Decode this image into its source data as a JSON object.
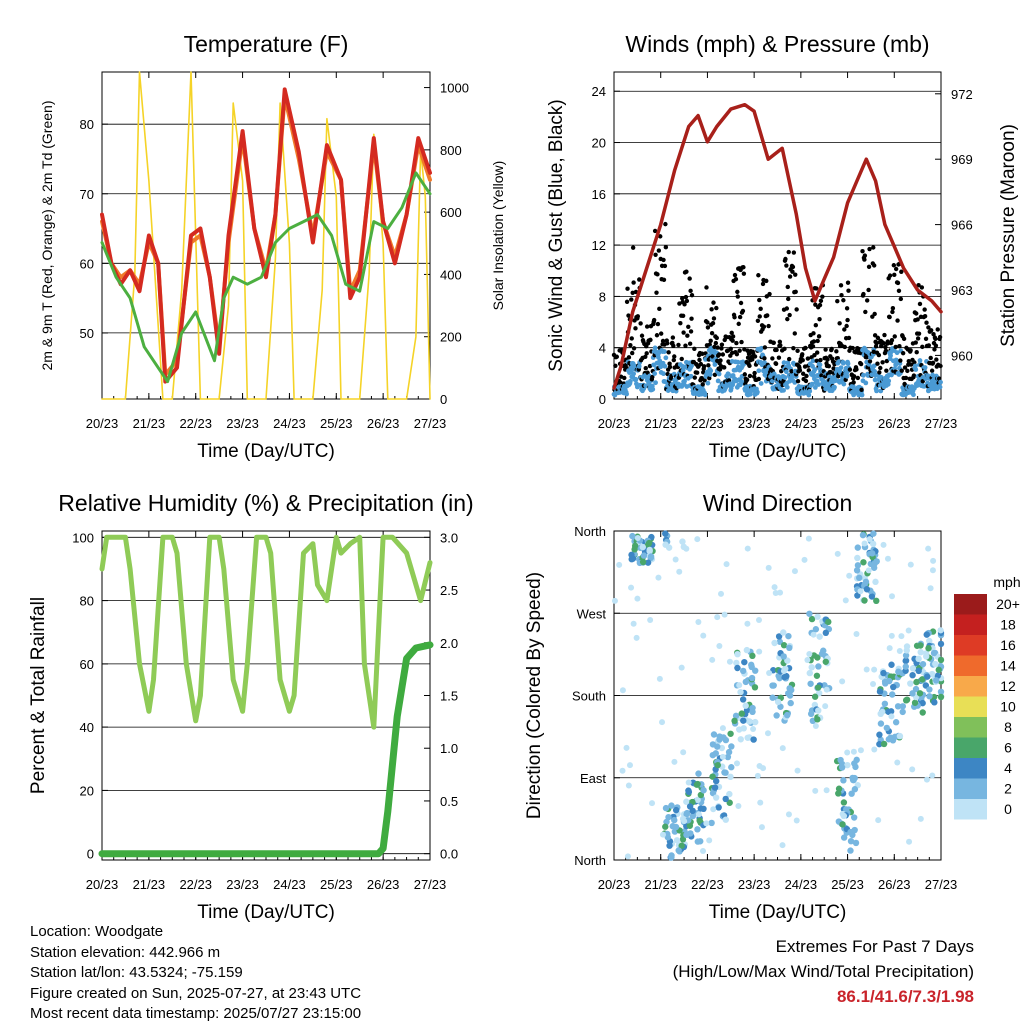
{
  "chart_data": [
    {
      "type": "line",
      "title": "Temperature (F)",
      "xlabel": "Time (Day/UTC)",
      "ylabel": "2m & 9m T (Red, Orange) & 2m Td (Green)",
      "ylabel_right": "Solar Insolation (Yellow)",
      "x_ticks": [
        "20/23",
        "21/23",
        "22/23",
        "23/23",
        "24/23",
        "25/23",
        "26/23",
        "27/23"
      ],
      "y_ticks": [
        50,
        60,
        70,
        80
      ],
      "ylim": [
        40.5,
        87.5
      ],
      "y2_ticks": [
        0,
        200,
        400,
        600,
        800,
        1000
      ],
      "y2lim": [
        0,
        1050
      ],
      "grid": true,
      "series": [
        {
          "color": "#d42a20",
          "axis": "left",
          "x": [
            0,
            0.2,
            0.4,
            0.6,
            0.8,
            1.0,
            1.2,
            1.35,
            1.6,
            1.9,
            2.1,
            2.3,
            2.5,
            2.7,
            3.0,
            3.25,
            3.5,
            3.7,
            3.9,
            4.2,
            4.5,
            4.8,
            5.1,
            5.3,
            5.5,
            5.8,
            6.0,
            6.25,
            6.5,
            6.75,
            7.0
          ],
          "y": [
            67,
            60,
            57,
            59,
            56,
            64,
            60,
            43,
            45,
            64,
            65,
            58,
            47,
            64,
            79,
            65,
            58,
            67,
            85,
            76,
            63,
            77,
            72,
            55,
            58,
            78,
            66,
            60,
            67,
            78,
            73
          ]
        },
        {
          "color": "#f07a2a",
          "axis": "left",
          "x": [
            0,
            0.2,
            0.4,
            0.6,
            0.8,
            1.0,
            1.2,
            1.35,
            1.6,
            1.9,
            2.1,
            2.3,
            2.5,
            2.7,
            3.0,
            3.25,
            3.5,
            3.7,
            3.9,
            4.2,
            4.5,
            4.8,
            5.1,
            5.3,
            5.5,
            5.8,
            6.0,
            6.25,
            6.5,
            6.75,
            7.0
          ],
          "y": [
            66,
            60,
            58,
            59,
            57,
            63,
            60,
            44,
            46,
            63,
            64,
            58,
            48,
            63,
            78,
            65,
            59,
            67,
            84,
            75,
            64,
            76,
            72,
            56,
            59,
            77,
            66,
            61,
            67,
            77,
            72
          ]
        },
        {
          "color": "#4caf40",
          "axis": "left",
          "x": [
            0,
            0.3,
            0.6,
            0.9,
            1.2,
            1.4,
            1.7,
            2.0,
            2.4,
            2.6,
            2.8,
            3.1,
            3.4,
            3.7,
            4.0,
            4.3,
            4.6,
            4.9,
            5.2,
            5.5,
            5.8,
            6.1,
            6.4,
            6.7,
            7.0
          ],
          "y": [
            63,
            58,
            55,
            48,
            45,
            43,
            50,
            53,
            46,
            55,
            58,
            57,
            58,
            63,
            65,
            66,
            67,
            64,
            57,
            56,
            66,
            65,
            68,
            73,
            70
          ]
        },
        {
          "color": "#f5d327",
          "axis": "right",
          "x": [
            0,
            0.5,
            0.7,
            0.8,
            1.0,
            1.3,
            1.5,
            1.7,
            1.9,
            2.1,
            2.5,
            2.7,
            2.8,
            3.0,
            3.1,
            3.5,
            3.7,
            3.8,
            4.0,
            4.1,
            4.5,
            4.7,
            4.8,
            5.0,
            5.1,
            5.5,
            5.7,
            5.8,
            6.0,
            6.1,
            6.5,
            6.7,
            6.8,
            6.9,
            7.0
          ],
          "y": [
            0,
            0,
            400,
            1050,
            700,
            0,
            0,
            350,
            1050,
            0,
            0,
            300,
            950,
            700,
            0,
            0,
            450,
            950,
            500,
            0,
            0,
            350,
            900,
            650,
            0,
            0,
            400,
            850,
            500,
            0,
            0,
            200,
            800,
            650,
            0
          ]
        }
      ]
    },
    {
      "type": "scatter",
      "title": "Winds (mph) & Pressure (mb)",
      "xlabel": "Time (Day/UTC)",
      "ylabel": "Sonic Wind & Gust (Blue, Black)",
      "ylabel_right": "Station Pressure (Maroon)",
      "x_ticks": [
        "20/23",
        "21/23",
        "22/23",
        "23/23",
        "24/23",
        "25/23",
        "26/23",
        "27/23"
      ],
      "y_ticks": [
        0,
        4,
        8,
        12,
        16,
        20,
        24
      ],
      "ylim": [
        0,
        25.5
      ],
      "y2_ticks": [
        960,
        963,
        966,
        969,
        972
      ],
      "y2lim": [
        958,
        973
      ],
      "grid": true,
      "pressure": {
        "color": "#a8201a",
        "x": [
          0,
          0.15,
          0.4,
          0.7,
          1.0,
          1.3,
          1.6,
          1.8,
          2.0,
          2.2,
          2.5,
          2.8,
          3.0,
          3.3,
          3.6,
          3.9,
          4.1,
          4.3,
          4.5,
          4.7,
          5.0,
          5.2,
          5.4,
          5.6,
          5.8,
          6.0,
          6.2,
          6.5,
          6.8,
          7.0
        ],
        "y": [
          958.5,
          959.5,
          962,
          964,
          966,
          968.5,
          970.5,
          971,
          969.8,
          970.5,
          971.3,
          971.5,
          971.2,
          969,
          969.5,
          966.5,
          964,
          962.5,
          963.5,
          964.5,
          967,
          968,
          969,
          968,
          966,
          965,
          964,
          963,
          962.5,
          962
        ]
      },
      "wind_envelope": [
        1,
        3,
        2,
        4,
        2,
        3,
        1,
        4,
        2,
        3,
        1,
        4,
        2,
        3,
        1,
        3,
        2,
        3,
        1,
        4,
        2,
        4,
        1,
        3,
        2
      ],
      "gust_envelope": [
        4,
        12,
        6,
        14,
        5,
        10,
        4,
        9,
        5,
        11,
        4,
        10,
        5,
        12,
        4,
        9,
        4,
        10,
        4,
        12,
        5,
        11,
        5,
        9,
        6
      ],
      "gust_colors": {
        "wind": "#4a9ad4",
        "gust": "#000000"
      }
    },
    {
      "type": "line",
      "title": "Relative Humidity (%) & Precipitation (in)",
      "xlabel": "Time (Day/UTC)",
      "ylabel": "Percent & Total Rainfall",
      "x_ticks": [
        "20/23",
        "21/23",
        "22/23",
        "23/23",
        "24/23",
        "25/23",
        "26/23",
        "27/23"
      ],
      "y_ticks": [
        0,
        20,
        40,
        60,
        80,
        100
      ],
      "ylim": [
        -2,
        102
      ],
      "y2_ticks": [
        "0.0",
        "0.5",
        "1.0",
        "1.5",
        "2.0",
        "2.5",
        "3.0"
      ],
      "y2lim": [
        -0.06,
        3.06
      ],
      "grid": true,
      "series": [
        {
          "color": "#8fcb57",
          "axis": "left",
          "x": [
            0,
            0.1,
            0.3,
            0.5,
            0.6,
            0.8,
            1.0,
            1.1,
            1.3,
            1.5,
            1.6,
            1.8,
            2.0,
            2.1,
            2.3,
            2.5,
            2.6,
            2.8,
            3.0,
            3.1,
            3.3,
            3.5,
            3.6,
            3.8,
            4.0,
            4.1,
            4.3,
            4.5,
            4.6,
            4.8,
            5.0,
            5.1,
            5.3,
            5.5,
            5.6,
            5.8,
            6.0,
            6.2,
            6.5,
            6.8,
            7.0
          ],
          "y": [
            90,
            100,
            100,
            100,
            90,
            60,
            45,
            55,
            100,
            100,
            95,
            60,
            42,
            50,
            100,
            100,
            90,
            55,
            45,
            60,
            100,
            100,
            95,
            55,
            45,
            50,
            95,
            98,
            85,
            80,
            100,
            95,
            98,
            100,
            60,
            40,
            100,
            100,
            95,
            80,
            92
          ]
        },
        {
          "color": "#3fab3f",
          "axis": "right",
          "x": [
            0,
            1,
            2,
            3,
            4,
            5,
            5.9,
            6.0,
            6.1,
            6.3,
            6.5,
            6.7,
            6.9,
            7.0
          ],
          "y": [
            0,
            0,
            0,
            0,
            0,
            0,
            0,
            0.05,
            0.4,
            1.3,
            1.85,
            1.95,
            1.97,
            1.98
          ]
        }
      ]
    },
    {
      "type": "scatter",
      "title": "Wind Direction",
      "xlabel": "Time (Day/UTC)",
      "ylabel": "Direction (Colored By Speed)",
      "x_ticks": [
        "20/23",
        "21/23",
        "22/23",
        "23/23",
        "24/23",
        "25/23",
        "26/23",
        "27/23"
      ],
      "y_ticks": [
        "North",
        "East",
        "South",
        "West",
        "North"
      ],
      "ylim": [
        0,
        360
      ],
      "grid": true,
      "clusters": [
        {
          "x": 0.6,
          "dir": 340,
          "spread": 15
        },
        {
          "x": 1.3,
          "dir": 20,
          "spread": 40
        },
        {
          "x": 1.7,
          "dir": 60,
          "spread": 40
        },
        {
          "x": 2.3,
          "dir": 90,
          "spread": 50
        },
        {
          "x": 2.8,
          "dir": 180,
          "spread": 50
        },
        {
          "x": 3.6,
          "dir": 200,
          "spread": 50
        },
        {
          "x": 4.4,
          "dir": 210,
          "spread": 60
        },
        {
          "x": 5.0,
          "dir": 60,
          "spread": 50
        },
        {
          "x": 5.4,
          "dir": 320,
          "spread": 40
        },
        {
          "x": 5.9,
          "dir": 170,
          "spread": 45
        },
        {
          "x": 6.4,
          "dir": 200,
          "spread": 40
        },
        {
          "x": 6.9,
          "dir": 210,
          "spread": 40
        }
      ],
      "legend": {
        "title": "mph",
        "labels": [
          "20+",
          "18",
          "16",
          "14",
          "12",
          "10",
          "8",
          "6",
          "4",
          "2",
          "0"
        ],
        "colors": [
          "#9b1b1b",
          "#c4201f",
          "#de3b25",
          "#ef6a2c",
          "#f8a94a",
          "#e8df56",
          "#80c05a",
          "#49a66a",
          "#3d86c4",
          "#77b6e0",
          "#bfe3f6"
        ]
      }
    }
  ],
  "meta": {
    "location": "Location: Woodgate",
    "elevation": "Station elevation: 442.966 m",
    "latlon": "Station lat/lon: 43.5324; -75.159",
    "created": "Figure created on Sun, 2025-07-27, at 23:43 UTC",
    "recent": "Most recent data timestamp: 2025/07/27 23:15:00"
  },
  "extremes": {
    "line1": "Extremes For Past 7 Days",
    "line2": "(High/Low/Max Wind/Total Precipitation)",
    "values": "86.1/41.6/7.3/1.98"
  }
}
